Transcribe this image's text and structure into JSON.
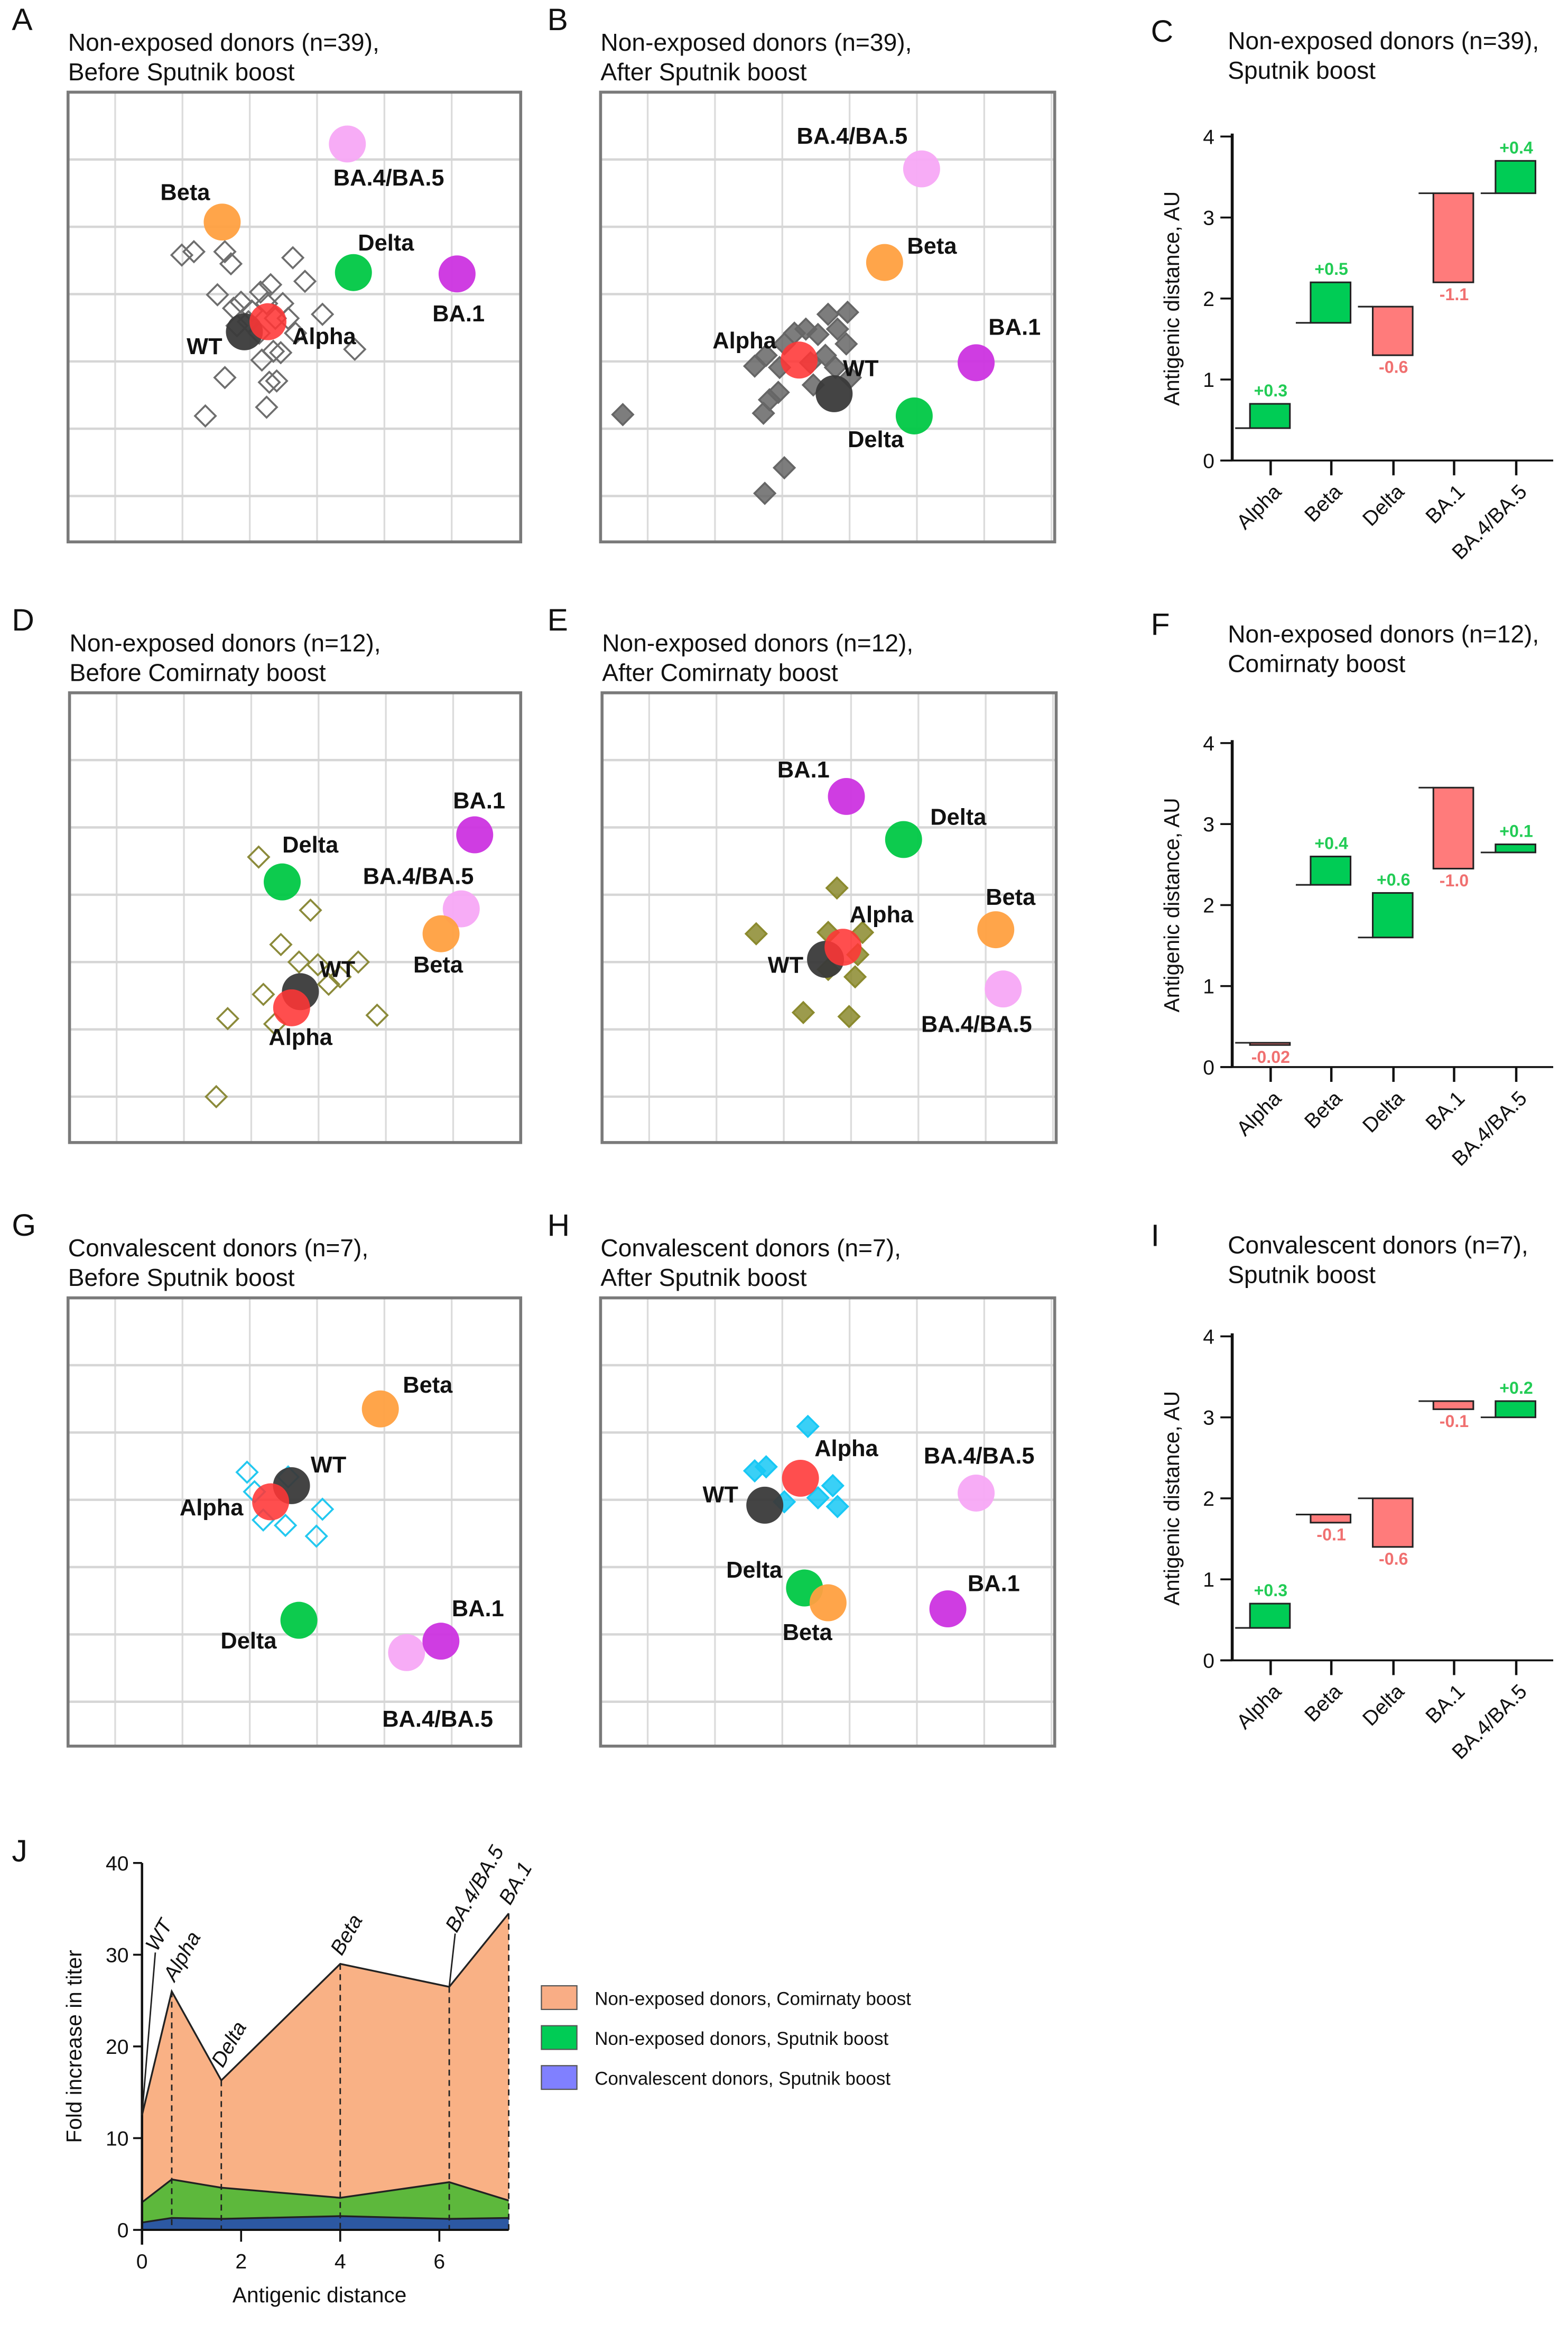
{
  "colors": {
    "WT": "#3a3a3a",
    "Alpha": "#ff3535",
    "Beta": "#ffa040",
    "Delta": "#00c845",
    "BA.1": "#cc33e0",
    "BA.4/BA.5": "#f7a8f5",
    "increase": "#00cc55",
    "decrease": "#ff7b7b",
    "increase_text": "#22cc55",
    "decrease_text": "#f07070"
  },
  "chart_data": [
    {
      "type": "scatter",
      "letter": "A",
      "title": [
        "Non-exposed donors (n=39),",
        "Before Sputnik boost"
      ],
      "sera_marker": "open-diamond",
      "sera_color": "#6e6e6e",
      "antigens": [
        {
          "name": "BA.4/BA.5",
          "x": 4.15,
          "y": 0.77
        },
        {
          "name": "Beta",
          "x": 2.29,
          "y": 1.93
        },
        {
          "name": "Delta",
          "x": 4.24,
          "y": 2.68
        },
        {
          "name": "BA.1",
          "x": 5.78,
          "y": 2.7
        },
        {
          "name": "WT",
          "x": 2.62,
          "y": 3.56
        },
        {
          "name": "Alpha",
          "x": 2.97,
          "y": 3.41
        }
      ],
      "sera": [
        [
          1.69,
          2.42
        ],
        [
          1.87,
          2.37
        ],
        [
          2.33,
          2.37
        ],
        [
          2.42,
          2.55
        ],
        [
          3.34,
          2.46
        ],
        [
          2.22,
          3.01
        ],
        [
          2.57,
          3.12
        ],
        [
          2.86,
          2.97
        ],
        [
          3.01,
          2.86
        ],
        [
          3.52,
          2.81
        ],
        [
          3.78,
          3.3
        ],
        [
          2.73,
          3.25
        ],
        [
          2.51,
          3.47
        ],
        [
          2.84,
          3.58
        ],
        [
          3.08,
          3.36
        ],
        [
          3.19,
          3.14
        ],
        [
          3.38,
          3.58
        ],
        [
          3.05,
          3.85
        ],
        [
          2.88,
          3.98
        ],
        [
          3.16,
          3.87
        ],
        [
          4.26,
          3.82
        ],
        [
          2.33,
          4.24
        ],
        [
          2.99,
          4.31
        ],
        [
          3.1,
          4.29
        ],
        [
          2.95,
          4.68
        ],
        [
          2.04,
          4.81
        ],
        [
          2.68,
          3.41
        ],
        [
          2.46,
          3.21
        ],
        [
          2.95,
          3.14
        ],
        [
          3.27,
          3.36
        ]
      ]
    },
    {
      "type": "scatter",
      "letter": "B",
      "title": [
        "Non-exposed donors (n=39),",
        "After Sputnik boost"
      ],
      "sera_marker": "filled-diamond",
      "sera_color": "#666666",
      "antigens": [
        {
          "name": "BA.4/BA.5",
          "x": 4.77,
          "y": 1.14
        },
        {
          "name": "Beta",
          "x": 4.22,
          "y": 2.53
        },
        {
          "name": "BA.1",
          "x": 5.58,
          "y": 4.02
        },
        {
          "name": "Delta",
          "x": 4.66,
          "y": 4.81
        },
        {
          "name": "WT",
          "x": 3.47,
          "y": 4.48
        },
        {
          "name": "Alpha",
          "x": 2.95,
          "y": 3.98
        }
      ],
      "sera": [
        [
          0.33,
          4.79
        ],
        [
          2.44,
          5.96
        ],
        [
          2.73,
          5.58
        ],
        [
          2.42,
          4.77
        ],
        [
          2.51,
          4.57
        ],
        [
          2.64,
          4.46
        ],
        [
          2.29,
          4.07
        ],
        [
          2.46,
          3.91
        ],
        [
          2.73,
          3.74
        ],
        [
          2.88,
          3.58
        ],
        [
          3.05,
          3.52
        ],
        [
          3.23,
          3.6
        ],
        [
          3.38,
          3.3
        ],
        [
          3.67,
          3.27
        ],
        [
          3.52,
          3.52
        ],
        [
          3.65,
          3.74
        ],
        [
          3.34,
          3.91
        ],
        [
          3.49,
          4.09
        ],
        [
          3.71,
          4.24
        ],
        [
          3.12,
          4.02
        ],
        [
          2.66,
          4.09
        ],
        [
          3.16,
          4.35
        ]
      ]
    },
    {
      "type": "bar",
      "subtype": "waterfall",
      "letter": "C",
      "title": [
        "Non-exposed donors (n=39),",
        "Sputnik boost"
      ],
      "ylabel": "Antigenic distance, AU",
      "ylim": [
        0,
        4
      ],
      "yticks": [
        "0",
        "1",
        "2",
        "3",
        "4"
      ],
      "categories": [
        "Alpha",
        "Beta",
        "Delta",
        "BA.1",
        "BA.4/BA.5"
      ],
      "start": [
        0.4,
        1.7,
        1.9,
        3.3,
        3.3
      ],
      "end": [
        0.7,
        2.2,
        1.3,
        2.2,
        3.7
      ],
      "labels": [
        "+0.3",
        "+0.5",
        "-0.6",
        "-1.1",
        "+0.4"
      ]
    },
    {
      "type": "scatter",
      "letter": "D",
      "title": [
        "Non-exposed donors (n=12),",
        "Before Comirnaty boost"
      ],
      "sera_marker": "open-diamond",
      "sera_color": "#8b8a3a",
      "antigens": [
        {
          "name": "BA.1",
          "x": 6.02,
          "y": 2.11
        },
        {
          "name": "Delta",
          "x": 3.16,
          "y": 2.81
        },
        {
          "name": "BA.4/BA.5",
          "x": 5.82,
          "y": 3.21
        },
        {
          "name": "Beta",
          "x": 5.52,
          "y": 3.58
        },
        {
          "name": "WT",
          "x": 3.43,
          "y": 4.44
        },
        {
          "name": "Alpha",
          "x": 3.3,
          "y": 4.68
        }
      ],
      "sera": [
        [
          2.81,
          2.44
        ],
        [
          3.58,
          3.23
        ],
        [
          3.14,
          3.74
        ],
        [
          3.41,
          4.0
        ],
        [
          3.69,
          4.04
        ],
        [
          4.29,
          4.0
        ],
        [
          3.85,
          4.33
        ],
        [
          2.88,
          4.48
        ],
        [
          2.35,
          4.84
        ],
        [
          3.05,
          4.92
        ],
        [
          4.57,
          4.79
        ],
        [
          2.18,
          6.0
        ],
        [
          4.02,
          4.22
        ]
      ]
    },
    {
      "type": "scatter",
      "letter": "E",
      "title": [
        "Non-exposed donors (n=12),",
        "After Comirnaty boost"
      ],
      "sera_marker": "filled-diamond",
      "sera_color": "#8b8a2e",
      "antigens": [
        {
          "name": "BA.1",
          "x": 3.63,
          "y": 1.54
        },
        {
          "name": "Delta",
          "x": 4.48,
          "y": 2.18
        },
        {
          "name": "Beta",
          "x": 5.85,
          "y": 3.52
        },
        {
          "name": "WT",
          "x": 3.32,
          "y": 3.96
        },
        {
          "name": "Alpha",
          "x": 3.58,
          "y": 3.78
        },
        {
          "name": "BA.4/BA.5",
          "x": 5.96,
          "y": 4.4
        }
      ],
      "sera": [
        [
          3.49,
          2.9
        ],
        [
          2.29,
          3.58
        ],
        [
          3.36,
          3.56
        ],
        [
          3.87,
          3.56
        ],
        [
          3.76,
          4.22
        ],
        [
          2.99,
          4.75
        ],
        [
          3.67,
          4.81
        ],
        [
          3.36,
          4.11
        ],
        [
          3.8,
          3.89
        ]
      ]
    },
    {
      "type": "bar",
      "subtype": "waterfall",
      "letter": "F",
      "title": [
        "Non-exposed donors (n=12),",
        "Comirnaty boost"
      ],
      "ylabel": "Antigenic distance, AU",
      "ylim": [
        0,
        4
      ],
      "yticks": [
        "0",
        "1",
        "2",
        "3",
        "4"
      ],
      "categories": [
        "Alpha",
        "Beta",
        "Delta",
        "BA.1",
        "BA.4/BA.5"
      ],
      "start": [
        0.3,
        2.25,
        1.6,
        3.45,
        2.65
      ],
      "end": [
        0.28,
        2.6,
        2.15,
        2.45,
        2.75
      ],
      "labels": [
        "-0.02",
        "+0.4",
        "+0.6",
        "-1.0",
        "+0.1"
      ]
    },
    {
      "type": "scatter",
      "letter": "G",
      "title": [
        "Convalescent donors (n=7),",
        "Before Sputnik boost"
      ],
      "sera_marker": "open-diamond",
      "sera_color": "#22c8f0",
      "antigens": [
        {
          "name": "Beta",
          "x": 4.64,
          "y": 1.65
        },
        {
          "name": "WT",
          "x": 3.32,
          "y": 2.79
        },
        {
          "name": "Alpha",
          "x": 3.01,
          "y": 3.03
        },
        {
          "name": "Delta",
          "x": 3.43,
          "y": 4.79
        },
        {
          "name": "BA.4/BA.5",
          "x": 5.03,
          "y": 5.27
        },
        {
          "name": "BA.1",
          "x": 5.54,
          "y": 5.1
        }
      ],
      "sera": [
        [
          2.66,
          2.59
        ],
        [
          2.9,
          3.3
        ],
        [
          3.23,
          3.38
        ],
        [
          3.78,
          3.14
        ],
        [
          3.69,
          3.54
        ],
        [
          3.27,
          2.66
        ],
        [
          2.77,
          2.88
        ]
      ]
    },
    {
      "type": "scatter",
      "letter": "H",
      "title": [
        "Convalescent donors (n=7),",
        "After Sputnik boost"
      ],
      "sera_marker": "filled-diamond",
      "sera_color": "#18c8f5",
      "antigens": [
        {
          "name": "WT",
          "x": 2.44,
          "y": 3.08
        },
        {
          "name": "Alpha",
          "x": 2.97,
          "y": 2.68
        },
        {
          "name": "BA.4/BA.5",
          "x": 5.58,
          "y": 2.9
        },
        {
          "name": "Delta",
          "x": 3.03,
          "y": 4.31
        },
        {
          "name": "Beta",
          "x": 3.38,
          "y": 4.53
        },
        {
          "name": "BA.1",
          "x": 5.16,
          "y": 4.62
        }
      ],
      "sera": [
        [
          3.08,
          1.91
        ],
        [
          2.29,
          2.57
        ],
        [
          2.46,
          2.51
        ],
        [
          3.45,
          2.79
        ],
        [
          3.23,
          2.97
        ],
        [
          3.52,
          3.1
        ],
        [
          2.73,
          3.03
        ]
      ]
    },
    {
      "type": "bar",
      "subtype": "waterfall",
      "letter": "I",
      "title": [
        "Convalescent donors (n=7),",
        "Sputnik boost"
      ],
      "ylabel": "Antigenic distance, AU",
      "ylim": [
        0,
        4
      ],
      "yticks": [
        "0",
        "1",
        "2",
        "3",
        "4"
      ],
      "categories": [
        "Alpha",
        "Beta",
        "Delta",
        "BA.1",
        "BA.4/BA.5"
      ],
      "start": [
        0.4,
        1.8,
        2.0,
        3.2,
        3.0
      ],
      "end": [
        0.7,
        1.7,
        1.4,
        3.1,
        3.2
      ],
      "labels": [
        "+0.3",
        "-0.1",
        "-0.6",
        "-0.1",
        "+0.2"
      ]
    },
    {
      "type": "area",
      "letter": "J",
      "xlabel": "Antigenic distance",
      "ylabel": "Fold increase in titer",
      "xlim": [
        0,
        7.4
      ],
      "ylim": [
        0,
        40
      ],
      "xticks": [
        "0",
        "2",
        "4",
        "6"
      ],
      "yticks": [
        "0",
        "10",
        "20",
        "30",
        "40"
      ],
      "variants": [
        "WT",
        "Alpha",
        "Delta",
        "Beta",
        "BA.4/BA.5",
        "BA.1"
      ],
      "x": [
        0,
        0.6,
        1.6,
        4.0,
        6.2,
        7.4
      ],
      "legend_position": "right",
      "series": [
        {
          "name": "Non-exposed donors, Comirnaty boost",
          "values": [
            12.5,
            26,
            16.3,
            29,
            26.5,
            34.5
          ],
          "legend_color": "#f9ad85",
          "area_color": "#f9b185"
        },
        {
          "name": "Non-exposed donors, Sputnik boost",
          "values": [
            3,
            5.5,
            4.6,
            3.5,
            5.2,
            3.2
          ],
          "legend_color": "#00cc55",
          "area_color": "#5db83c"
        },
        {
          "name": "Convalescent donors, Sputnik boost",
          "values": [
            0.8,
            1.3,
            1.2,
            1.5,
            1.2,
            1.3
          ],
          "legend_color": "#8080ff",
          "area_color": "#2c58a2"
        }
      ]
    }
  ]
}
